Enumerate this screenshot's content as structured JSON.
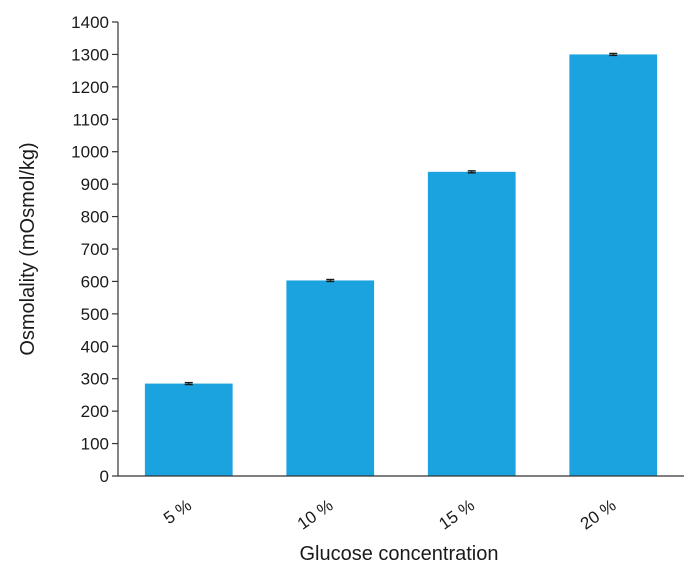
{
  "chart_data": {
    "type": "bar",
    "title": "",
    "xlabel": "Glucose concentration",
    "ylabel": "Osmolality (mOsmol/kg)",
    "categories": [
      "5 %",
      "10 %",
      "15 %",
      "20 %"
    ],
    "values": [
      285,
      603,
      938,
      1300
    ],
    "errors": [
      3,
      3,
      3,
      3
    ],
    "ylim": [
      0,
      1400
    ],
    "yticks": [
      "0",
      "100",
      "200",
      "300",
      "400",
      "500",
      "600",
      "700",
      "800",
      "900",
      "1000",
      "1100",
      "1200",
      "1300",
      "1400"
    ],
    "grid": false,
    "legend": "none",
    "bar_color": "#1aa3de",
    "error_color": "#1a1a1a",
    "axis_color": "#333333"
  }
}
